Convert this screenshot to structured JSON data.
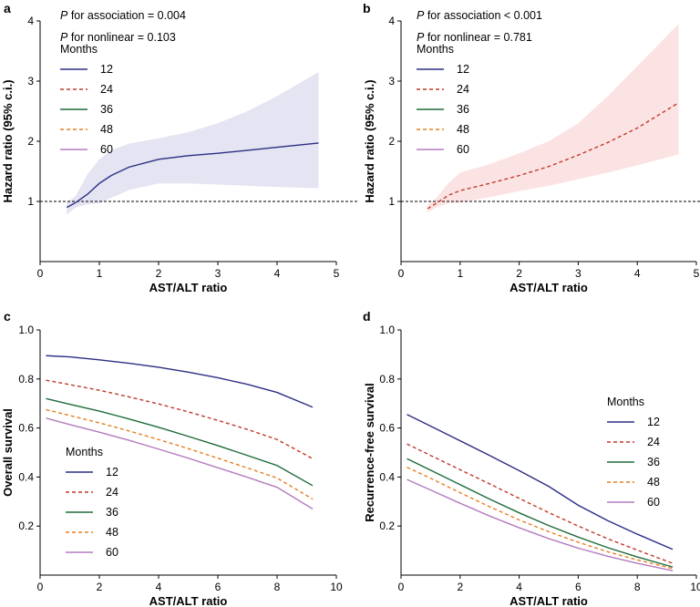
{
  "colors": {
    "m12": "#2b2e83",
    "m24": "#c0392b",
    "m36": "#1d6b3a",
    "m48": "#e67e22",
    "m60": "#b57ac0",
    "band_a": "#e4e4f2",
    "band_b": "#fbe3e3"
  },
  "legend": {
    "title": "Months",
    "entries": [
      {
        "label": "12",
        "color": "#2b2e83",
        "dash": "solid"
      },
      {
        "label": "24",
        "color": "#c0392b",
        "dash": "dashed"
      },
      {
        "label": "36",
        "color": "#1d6b3a",
        "dash": "solid"
      },
      {
        "label": "48",
        "color": "#e67e22",
        "dash": "dashed"
      },
      {
        "label": "60",
        "color": "#b57ac0",
        "dash": "solid"
      }
    ]
  },
  "panels": {
    "a": {
      "label": "a",
      "p_assoc_prefix": "P",
      "p_assoc_text": " for association = 0.004",
      "p_nonlin_prefix": "P",
      "p_nonlin_text": " for nonlinear = 0.103"
    },
    "b": {
      "label": "b",
      "p_assoc_prefix": "P",
      "p_assoc_text": " for association < 0.001",
      "p_nonlin_prefix": "P",
      "p_nonlin_text": " for nonlinear = 0.781"
    },
    "c": {
      "label": "c"
    },
    "d": {
      "label": "d"
    }
  },
  "chart_data": [
    {
      "id": "a",
      "type": "line",
      "xlabel": "AST/ALT ratio",
      "ylabel": "Hazard ratio (95% c.i.)",
      "xlim": [
        0,
        5
      ],
      "ylim": [
        0,
        4
      ],
      "xticks": [
        0,
        1,
        2,
        3,
        4,
        5
      ],
      "yticks": [
        1,
        2,
        3,
        4
      ],
      "reference_line": 1,
      "series": [
        {
          "name": "12",
          "color": "#2b2e83",
          "dash": "solid",
          "x": [
            0.45,
            0.6,
            0.8,
            1.0,
            1.2,
            1.5,
            2.0,
            2.5,
            3.0,
            3.5,
            4.0,
            4.7
          ],
          "y": [
            0.9,
            0.98,
            1.12,
            1.3,
            1.43,
            1.57,
            1.7,
            1.76,
            1.8,
            1.85,
            1.9,
            1.97
          ],
          "ci_low": [
            0.78,
            0.9,
            0.95,
            0.97,
            1.06,
            1.19,
            1.3,
            1.3,
            1.28,
            1.26,
            1.24,
            1.22
          ],
          "ci_high": [
            0.98,
            1.09,
            1.45,
            1.7,
            1.85,
            1.96,
            2.05,
            2.15,
            2.3,
            2.5,
            2.75,
            3.15
          ]
        }
      ]
    },
    {
      "id": "b",
      "type": "line",
      "xlabel": "AST/ALT ratio",
      "ylabel": "Hazard ratio (95% c.i.)",
      "xlim": [
        0,
        5
      ],
      "ylim": [
        0,
        4
      ],
      "xticks": [
        0,
        1,
        2,
        3,
        4,
        5
      ],
      "yticks": [
        1,
        2,
        3,
        4
      ],
      "reference_line": 1,
      "series": [
        {
          "name": "24",
          "color": "#c0392b",
          "dash": "dashed",
          "x": [
            0.45,
            0.6,
            0.8,
            1.0,
            1.5,
            2.0,
            2.5,
            3.0,
            3.5,
            4.0,
            4.7
          ],
          "y": [
            0.88,
            0.97,
            1.1,
            1.18,
            1.3,
            1.43,
            1.58,
            1.77,
            1.98,
            2.22,
            2.64
          ],
          "ci_low": [
            0.82,
            0.9,
            0.97,
            0.98,
            1.07,
            1.17,
            1.26,
            1.37,
            1.48,
            1.6,
            1.78
          ],
          "ci_high": [
            0.94,
            1.06,
            1.3,
            1.48,
            1.62,
            1.8,
            2.0,
            2.3,
            2.75,
            3.25,
            3.95
          ]
        }
      ]
    },
    {
      "id": "c",
      "type": "line",
      "xlabel": "AST/ALT ratio",
      "ylabel": "Overall survival",
      "xlim": [
        0,
        10
      ],
      "ylim": [
        0,
        1.0
      ],
      "xticks": [
        0,
        2,
        4,
        6,
        8,
        10
      ],
      "yticks": [
        0.2,
        0.4,
        0.6,
        0.8,
        1.0
      ],
      "x": [
        0.2,
        1,
        2,
        3,
        4,
        5,
        6,
        7,
        8,
        9.2
      ],
      "series": [
        {
          "name": "12",
          "color": "#2b2e83",
          "dash": "solid",
          "y": [
            0.895,
            0.89,
            0.878,
            0.864,
            0.848,
            0.828,
            0.805,
            0.778,
            0.745,
            0.685
          ]
        },
        {
          "name": "24",
          "color": "#c0392b",
          "dash": "dashed",
          "y": [
            0.795,
            0.777,
            0.754,
            0.727,
            0.698,
            0.666,
            0.631,
            0.594,
            0.553,
            0.475
          ]
        },
        {
          "name": "36",
          "color": "#1d6b3a",
          "dash": "solid",
          "y": [
            0.72,
            0.697,
            0.669,
            0.637,
            0.603,
            0.566,
            0.528,
            0.488,
            0.447,
            0.365
          ]
        },
        {
          "name": "48",
          "color": "#e67e22",
          "dash": "dashed",
          "y": [
            0.675,
            0.651,
            0.621,
            0.588,
            0.553,
            0.516,
            0.477,
            0.437,
            0.396,
            0.31
          ]
        },
        {
          "name": "60",
          "color": "#b57ac0",
          "dash": "solid",
          "y": [
            0.64,
            0.614,
            0.583,
            0.55,
            0.514,
            0.477,
            0.438,
            0.399,
            0.358,
            0.27
          ]
        }
      ]
    },
    {
      "id": "d",
      "type": "line",
      "xlabel": "AST/ALT ratio",
      "ylabel": "Recurrence-free survival",
      "xlim": [
        0,
        10
      ],
      "ylim": [
        0,
        1.0
      ],
      "xticks": [
        0,
        2,
        4,
        6,
        8,
        10
      ],
      "yticks": [
        0.2,
        0.4,
        0.6,
        0.8,
        1.0
      ],
      "x": [
        0.2,
        1,
        2,
        3,
        4,
        5,
        6,
        7,
        8,
        9.2
      ],
      "series": [
        {
          "name": "12",
          "color": "#2b2e83",
          "dash": "solid",
          "y": [
            0.655,
            0.608,
            0.548,
            0.488,
            0.426,
            0.362,
            0.285,
            0.222,
            0.167,
            0.105
          ]
        },
        {
          "name": "24",
          "color": "#c0392b",
          "dash": "dashed",
          "y": [
            0.535,
            0.488,
            0.43,
            0.372,
            0.313,
            0.255,
            0.2,
            0.148,
            0.102,
            0.048
          ]
        },
        {
          "name": "36",
          "color": "#1d6b3a",
          "dash": "solid",
          "y": [
            0.475,
            0.428,
            0.369,
            0.31,
            0.254,
            0.202,
            0.155,
            0.112,
            0.074,
            0.033
          ]
        },
        {
          "name": "48",
          "color": "#e67e22",
          "dash": "dashed",
          "y": [
            0.44,
            0.395,
            0.336,
            0.279,
            0.225,
            0.177,
            0.134,
            0.095,
            0.062,
            0.027
          ]
        },
        {
          "name": "60",
          "color": "#b57ac0",
          "dash": "solid",
          "y": [
            0.39,
            0.347,
            0.293,
            0.241,
            0.193,
            0.149,
            0.11,
            0.077,
            0.048,
            0.018
          ]
        }
      ]
    }
  ]
}
